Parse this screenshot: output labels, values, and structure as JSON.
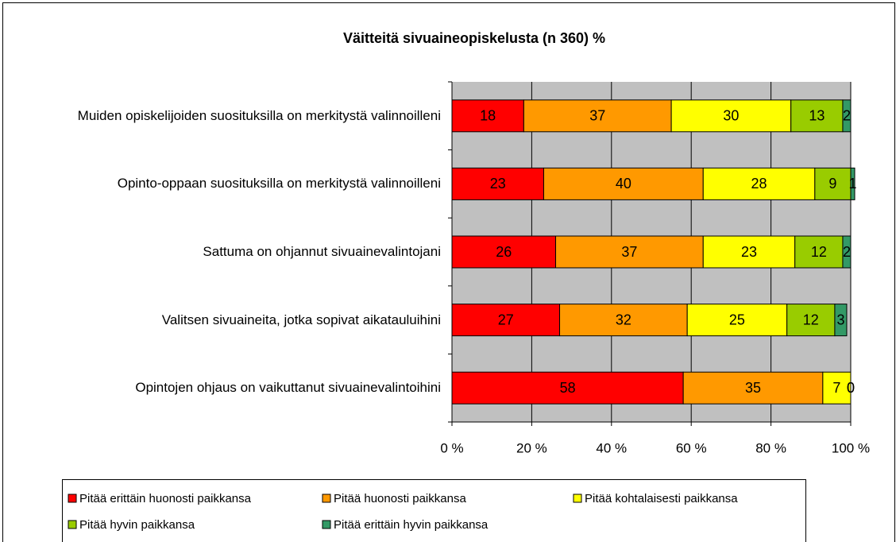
{
  "chart_data": {
    "type": "bar",
    "orientation": "horizontal",
    "stacked": true,
    "title": "Väitteitä sivuaineopiskelusta (n 360) %",
    "categories": [
      "Muiden opiskelijoiden  suosituksilla on merkitystä valinnoilleni",
      "Opinto-oppaan suosituksilla on merkitystä valinnoilleni",
      "Sattuma on ohjannut sivuainevalintojani",
      "Valitsen sivuaineita, jotka sopivat aikatauluihini",
      "Opintojen ohjaus on vaikuttanut sivuainevalintoihini"
    ],
    "series": [
      {
        "name": "Pitää erittäin huonosti paikkansa",
        "color": "#ff0000",
        "values": [
          18,
          23,
          26,
          27,
          58
        ]
      },
      {
        "name": "Pitää huonosti paikkansa",
        "color": "#ff9900",
        "values": [
          37,
          40,
          37,
          32,
          35
        ]
      },
      {
        "name": "Pitää kohtalaisesti paikkansa",
        "color": "#ffff00",
        "values": [
          30,
          28,
          23,
          25,
          7
        ]
      },
      {
        "name": "Pitää hyvin paikkansa",
        "color": "#99cc00",
        "values": [
          13,
          9,
          12,
          12,
          0
        ]
      },
      {
        "name": "Pitää erittäin hyvin paikkansa",
        "color": "#339966",
        "values": [
          2,
          1,
          2,
          3,
          0
        ]
      }
    ],
    "xlim": [
      0,
      100
    ],
    "xticks": [
      {
        "value": 0,
        "label": "0 %"
      },
      {
        "value": 20,
        "label": "20 %"
      },
      {
        "value": 40,
        "label": "40 %"
      },
      {
        "value": 60,
        "label": "60 %"
      },
      {
        "value": 80,
        "label": "80 %"
      },
      {
        "value": 100,
        "label": "100 %"
      }
    ],
    "grid": true
  }
}
